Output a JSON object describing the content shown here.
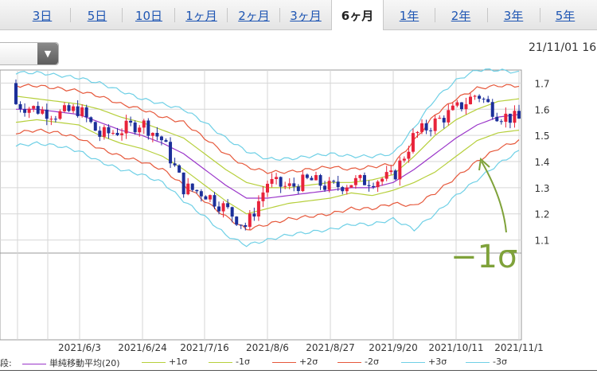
{
  "tabs": [
    {
      "label": "3日",
      "active": false
    },
    {
      "label": "5日",
      "active": false
    },
    {
      "label": "10日",
      "active": false
    },
    {
      "label": "1ヶ月",
      "active": false
    },
    {
      "label": "2ヶ月",
      "active": false
    },
    {
      "label": "3ヶ月",
      "active": false
    },
    {
      "label": "6ヶ月",
      "active": true
    },
    {
      "label": "1年",
      "active": false
    },
    {
      "label": "2年",
      "active": false
    },
    {
      "label": "3年",
      "active": false
    },
    {
      "label": "5年",
      "active": false
    }
  ],
  "timestamp": "21/11/01 16",
  "dropdown_icon": "chevron-down-icon",
  "annotation": "−1σ",
  "colors": {
    "up": "#e8233b",
    "down": "#1c2f9a",
    "sma": "#9a35c9",
    "sigma1": "#b6cf3b",
    "sigma2": "#e6583b",
    "sigma3": "#6fd0e6",
    "annotation": "#7fa23a",
    "grid": "#d6d6d6"
  },
  "legend": {
    "prefix": "段:",
    "items": [
      {
        "label": "単純移動平均(20)",
        "color": "#9a35c9"
      },
      {
        "label": "+1σ",
        "color": "#b6cf3b"
      },
      {
        "label": "-1σ",
        "color": "#b6cf3b"
      },
      {
        "label": "+2σ",
        "color": "#e6583b"
      },
      {
        "label": "-2σ",
        "color": "#e6583b"
      },
      {
        "label": "+3σ",
        "color": "#6fd0e6"
      },
      {
        "label": "-3σ",
        "color": "#6fd0e6"
      }
    ]
  },
  "chart_data": {
    "type": "candlestick",
    "x_tick_labels": [
      "2021/6/3",
      "2021/6/24",
      "2021/7/16",
      "2021/8/6",
      "2021/8/27",
      "2021/9/20",
      "2021/10/11",
      "2021/11/1"
    ],
    "y_ticks": [
      1.1,
      1.2,
      1.3,
      1.4,
      1.5,
      1.6,
      1.7
    ],
    "ylim": [
      1.05,
      1.75
    ],
    "grid": true,
    "dates": [
      "2021/5/12",
      "2021/5/19",
      "2021/5/26",
      "2021/6/3",
      "2021/6/10",
      "2021/6/17",
      "2021/6/24",
      "2021/7/1",
      "2021/7/9",
      "2021/7/16",
      "2021/7/26",
      "2021/8/2",
      "2021/8/6",
      "2021/8/13",
      "2021/8/20",
      "2021/8/27",
      "2021/9/3",
      "2021/9/10",
      "2021/9/20",
      "2021/9/27",
      "2021/10/4",
      "2021/10/11",
      "2021/10/18",
      "2021/10/25",
      "2021/11/1"
    ],
    "close": [
      1.62,
      1.6,
      1.58,
      1.6,
      1.5,
      1.52,
      1.55,
      1.48,
      1.3,
      1.28,
      1.22,
      1.15,
      1.32,
      1.3,
      1.33,
      1.3,
      1.32,
      1.33,
      1.34,
      1.5,
      1.55,
      1.6,
      1.66,
      1.58,
      1.56
    ],
    "series": [
      {
        "name": "単純移動平均(20)",
        "values": [
          1.6,
          1.6,
          1.59,
          1.58,
          1.55,
          1.52,
          1.5,
          1.47,
          1.43,
          1.37,
          1.31,
          1.26,
          1.26,
          1.27,
          1.28,
          1.29,
          1.3,
          1.3,
          1.32,
          1.37,
          1.43,
          1.49,
          1.54,
          1.57,
          1.58
        ]
      },
      {
        "name": "+1σ",
        "values": [
          1.65,
          1.64,
          1.63,
          1.62,
          1.6,
          1.57,
          1.55,
          1.52,
          1.49,
          1.43,
          1.37,
          1.32,
          1.3,
          1.3,
          1.31,
          1.32,
          1.32,
          1.33,
          1.35,
          1.42,
          1.5,
          1.56,
          1.6,
          1.63,
          1.64
        ]
      },
      {
        "name": "-1σ",
        "values": [
          1.55,
          1.56,
          1.55,
          1.54,
          1.5,
          1.47,
          1.45,
          1.42,
          1.37,
          1.31,
          1.25,
          1.2,
          1.22,
          1.24,
          1.25,
          1.26,
          1.28,
          1.27,
          1.29,
          1.32,
          1.36,
          1.42,
          1.48,
          1.51,
          1.52
        ]
      },
      {
        "name": "+2σ",
        "values": [
          1.69,
          1.69,
          1.68,
          1.67,
          1.65,
          1.62,
          1.6,
          1.57,
          1.55,
          1.49,
          1.43,
          1.38,
          1.36,
          1.36,
          1.37,
          1.38,
          1.37,
          1.38,
          1.39,
          1.48,
          1.58,
          1.64,
          1.68,
          1.69,
          1.69
        ]
      },
      {
        "name": "-2σ",
        "values": [
          1.51,
          1.52,
          1.51,
          1.49,
          1.45,
          1.42,
          1.4,
          1.37,
          1.31,
          1.25,
          1.19,
          1.14,
          1.16,
          1.18,
          1.19,
          1.2,
          1.22,
          1.22,
          1.24,
          1.23,
          1.28,
          1.34,
          1.4,
          1.45,
          1.48
        ]
      },
      {
        "name": "+3σ",
        "values": [
          1.74,
          1.74,
          1.73,
          1.72,
          1.7,
          1.67,
          1.64,
          1.62,
          1.6,
          1.55,
          1.49,
          1.44,
          1.41,
          1.41,
          1.42,
          1.43,
          1.42,
          1.42,
          1.43,
          1.53,
          1.64,
          1.71,
          1.75,
          1.75,
          1.74
        ]
      },
      {
        "name": "-3σ",
        "values": [
          1.46,
          1.47,
          1.46,
          1.44,
          1.4,
          1.37,
          1.35,
          1.32,
          1.25,
          1.19,
          1.12,
          1.08,
          1.1,
          1.12,
          1.13,
          1.14,
          1.16,
          1.16,
          1.18,
          1.14,
          1.2,
          1.27,
          1.33,
          1.39,
          1.44
        ]
      }
    ]
  }
}
